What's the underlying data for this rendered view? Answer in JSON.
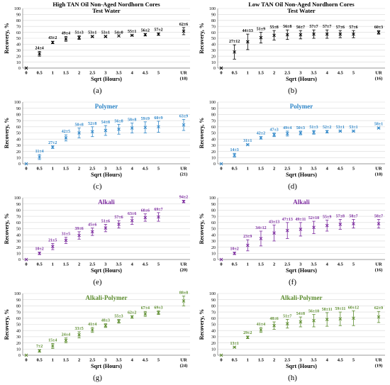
{
  "figure": {
    "panel_labels": [
      "(a)",
      "(b)",
      "(c)",
      "(d)",
      "(e)",
      "(f)",
      "(g)",
      "(h)"
    ]
  },
  "chart_data": [
    {
      "type": "scatter",
      "panel": "(a)",
      "title": "High TAN Oil Non-Aged Nordhorn Cores",
      "subtitle": "Test Water",
      "xlabel": "Sqrt (Hours)",
      "ylabel": "Recovery, %",
      "color": "#000000",
      "ylim": [
        0,
        100
      ],
      "yticks": [
        0,
        10,
        20,
        30,
        40,
        50,
        60,
        70,
        80,
        90,
        100
      ],
      "x_ticks": [
        "0",
        "0.5",
        "1",
        "1.5",
        "2",
        "2.5",
        "3",
        "3.5",
        "4",
        "4.5",
        "5",
        "UR",
        "(18)"
      ],
      "x": [
        0,
        0.5,
        1,
        1.5,
        2,
        2.5,
        3,
        3.5,
        4,
        4.5,
        5,
        "UR"
      ],
      "values": [
        0,
        24,
        43,
        49,
        51,
        53,
        53,
        54,
        55,
        56,
        57,
        62
      ],
      "errors": [
        0,
        4,
        2,
        4,
        3,
        1,
        1,
        0,
        1,
        2,
        2,
        6
      ],
      "labels": [
        "",
        "24±4",
        "43±2",
        "49±4",
        "51±3",
        "53±1",
        "53±1",
        "54±0",
        "55±1",
        "56±2",
        "57±2",
        "62±6"
      ],
      "grid": "horizontal"
    },
    {
      "type": "scatter",
      "panel": "(b)",
      "title": "Low TAN Oil Non-Aged Nordhorn Cores",
      "subtitle": "Test Water",
      "xlabel": "Sqrt (Hours)",
      "ylabel": "Recovery, %",
      "color": "#000000",
      "ylim": [
        0,
        100
      ],
      "yticks": [
        0,
        10,
        20,
        30,
        40,
        50,
        60,
        70,
        80,
        90,
        100
      ],
      "x_ticks": [
        "0",
        "0.5",
        "1",
        "1.5",
        "2",
        "2.5",
        "3",
        "3.5",
        "4",
        "4.5",
        "5",
        "UR",
        "(16)"
      ],
      "x": [
        0,
        0.5,
        1,
        1.5,
        2,
        2.5,
        3,
        3.5,
        4,
        4.5,
        5,
        "UR"
      ],
      "values": [
        0,
        27,
        44,
        51,
        55,
        56,
        56,
        57,
        57,
        57,
        57,
        60
      ],
      "errors": [
        0,
        12,
        13,
        9,
        8,
        8,
        7,
        7,
        7,
        6,
        6,
        3
      ],
      "labels": [
        "",
        "27±12",
        "44±13",
        "51±9",
        "55±8",
        "56±8",
        "56±7",
        "57±7",
        "57±7",
        "57±6",
        "57±6",
        "60±3"
      ],
      "grid": "horizontal"
    },
    {
      "type": "scatter",
      "panel": "(c)",
      "title": "Polymer",
      "subtitle": "",
      "xlabel": "Sqrt (Hours)",
      "ylabel": "Recovery, %",
      "color": "#2e86c8",
      "ylim": [
        0,
        100
      ],
      "yticks": [
        0,
        10,
        20,
        30,
        40,
        50,
        60,
        70,
        80,
        90,
        100
      ],
      "x_ticks": [
        "0",
        "0.5",
        "1",
        "1.5",
        "2",
        "2.5",
        "3",
        "3.5",
        "4",
        "4.5",
        "5",
        "UR",
        "(21)"
      ],
      "x": [
        0,
        0.5,
        1,
        1.5,
        2,
        2.5,
        3,
        3.5,
        4,
        4.5,
        5,
        "UR"
      ],
      "values": [
        0,
        11,
        27,
        42,
        50,
        52,
        54,
        56,
        58,
        59,
        60,
        63
      ],
      "errors": [
        0,
        4,
        2,
        5,
        8,
        8,
        8,
        8,
        8,
        9,
        9,
        9
      ],
      "labels": [
        "",
        "11±4",
        "27±2",
        "42±5",
        "50±8",
        "52±8",
        "54±8",
        "56±8",
        "58±8",
        "59±9",
        "60±9",
        "63±9"
      ],
      "grid": "horizontal"
    },
    {
      "type": "scatter",
      "panel": "(d)",
      "title": "Polymer",
      "subtitle": "",
      "xlabel": "Sqrt (Hours)",
      "ylabel": "Recovery, %",
      "color": "#2e86c8",
      "ylim": [
        0,
        100
      ],
      "yticks": [
        0,
        10,
        20,
        30,
        40,
        50,
        60,
        70,
        80,
        90,
        100
      ],
      "x_ticks": [
        "0",
        "0.5",
        "1",
        "1.5",
        "2",
        "2.5",
        "3",
        "3.5",
        "4",
        "4.5",
        "5",
        "UR",
        "(18)"
      ],
      "x": [
        0,
        0.5,
        1,
        1.5,
        2,
        2.5,
        3,
        3.5,
        4,
        4.5,
        5,
        "UR"
      ],
      "values": [
        0,
        14,
        31,
        42,
        47,
        49,
        50,
        51,
        52,
        53,
        53,
        58
      ],
      "errors": [
        0,
        3,
        1,
        2,
        3,
        4,
        3,
        3,
        2,
        1,
        1,
        1
      ],
      "labels": [
        "",
        "14±3",
        "31±1",
        "42±2",
        "47±3",
        "49±4",
        "50±3",
        "51±3",
        "52±2",
        "53±1",
        "53±1",
        "58±1"
      ],
      "grid": "horizontal"
    },
    {
      "type": "scatter",
      "panel": "(e)",
      "title": "Alkali",
      "subtitle": "",
      "xlabel": "Sqrt (Hours)",
      "ylabel": "Recovery, %",
      "color": "#7b2a9e",
      "ylim": [
        0,
        100
      ],
      "yticks": [
        0,
        10,
        20,
        30,
        40,
        50,
        60,
        70,
        80,
        90,
        100
      ],
      "x_ticks": [
        "0",
        "0.5",
        "1",
        "1.5",
        "2",
        "2.5",
        "3",
        "3.5",
        "4",
        "4.5",
        "5",
        "UR",
        "(20)"
      ],
      "x": [
        0,
        0.5,
        1,
        1.5,
        2,
        2.5,
        3,
        3.5,
        4,
        4.5,
        5,
        "UR"
      ],
      "values": [
        0,
        10,
        21,
        31,
        39,
        45,
        51,
        57,
        63,
        68,
        69,
        94
      ],
      "errors": [
        0,
        2,
        5,
        5,
        6,
        6,
        6,
        6,
        6,
        6,
        7,
        2
      ],
      "labels": [
        "",
        "10±2",
        "21±5",
        "31±5",
        "39±6",
        "45±6",
        "51±6",
        "57±6",
        "63±6",
        "68±6",
        "69±7",
        "94±2"
      ],
      "grid": "horizontal"
    },
    {
      "type": "scatter",
      "panel": "(f)",
      "title": "Alkali",
      "subtitle": "",
      "xlabel": "Sqrt (Hours)",
      "ylabel": "Recovery, %",
      "color": "#7b2a9e",
      "ylim": [
        0,
        100
      ],
      "yticks": [
        0,
        10,
        20,
        30,
        40,
        50,
        60,
        70,
        80,
        90,
        100
      ],
      "x_ticks": [
        "0",
        "0.5",
        "1",
        "1.5",
        "2",
        "2.5",
        "3",
        "3.5",
        "4",
        "4.5",
        "5",
        "UR",
        "(16)"
      ],
      "x": [
        0,
        0.5,
        1,
        1.5,
        2,
        2.5,
        3,
        3.5,
        4,
        4.5,
        5,
        "UR"
      ],
      "values": [
        0,
        10,
        23,
        34,
        43,
        47,
        49,
        52,
        55,
        57,
        58,
        58
      ],
      "errors": [
        0,
        2,
        9,
        12,
        13,
        13,
        11,
        10,
        9,
        8,
        7,
        7
      ],
      "labels": [
        "",
        "10±2",
        "23±9",
        "34±12",
        "43±13",
        "47±13",
        "49±11",
        "52±10",
        "55±9",
        "57±8",
        "58±7",
        "58±7"
      ],
      "grid": "horizontal"
    },
    {
      "type": "scatter",
      "panel": "(g)",
      "title": "Alkali-Polymer",
      "subtitle": "",
      "xlabel": "Sqrt (Hours)",
      "ylabel": "Recovery, %",
      "color": "#5c8c2e",
      "ylim": [
        0,
        100
      ],
      "yticks": [
        0,
        10,
        20,
        30,
        40,
        50,
        60,
        70,
        80,
        90,
        100
      ],
      "x_ticks": [
        "0",
        "0.5",
        "1",
        "1.5",
        "2",
        "2.5",
        "3",
        "3.5",
        "4",
        "4.5",
        "5",
        "UR",
        "(24)"
      ],
      "x": [
        0,
        0.5,
        1,
        1.5,
        2,
        2.5,
        3,
        3.5,
        4,
        4.5,
        5,
        "UR"
      ],
      "values": [
        0,
        7,
        15,
        24,
        33,
        41,
        48,
        55,
        62,
        67,
        69,
        88
      ],
      "errors": [
        0,
        2,
        4,
        4,
        5,
        4,
        3,
        3,
        2,
        4,
        3,
        8
      ],
      "labels": [
        "",
        "7±2",
        "15±4",
        "24±4",
        "33±5",
        "41±4",
        "48±3",
        "55±3",
        "62±2",
        "67±4",
        "69±3",
        "88±8"
      ],
      "grid": "horizontal"
    },
    {
      "type": "scatter",
      "panel": "(h)",
      "title": "Alkali-Polymer",
      "subtitle": "",
      "xlabel": "Sqrt (Hours)",
      "ylabel": "Recovery, %",
      "color": "#5c8c2e",
      "ylim": [
        0,
        100
      ],
      "yticks": [
        0,
        10,
        20,
        30,
        40,
        50,
        60,
        70,
        80,
        90,
        100
      ],
      "x_ticks": [
        "0",
        "0.5",
        "1",
        "1.5",
        "2",
        "2.5",
        "3",
        "3.5",
        "4",
        "4.5",
        "5",
        "UR",
        "(19)"
      ],
      "x": [
        0,
        0.5,
        1,
        1.5,
        2,
        2.5,
        3,
        3.5,
        4,
        4.5,
        5,
        "UR"
      ],
      "values": [
        0,
        13,
        29,
        41,
        48,
        51,
        54,
        56,
        58,
        59,
        60,
        62
      ],
      "errors": [
        0,
        1,
        2,
        4,
        6,
        7,
        8,
        10,
        11,
        11,
        12,
        9
      ],
      "labels": [
        "",
        "13±1",
        "29±2",
        "41±4",
        "48±6",
        "51±7",
        "54±8",
        "56±10",
        "58±11",
        "59±11",
        "60±12",
        "62±9"
      ],
      "grid": "horizontal"
    }
  ]
}
